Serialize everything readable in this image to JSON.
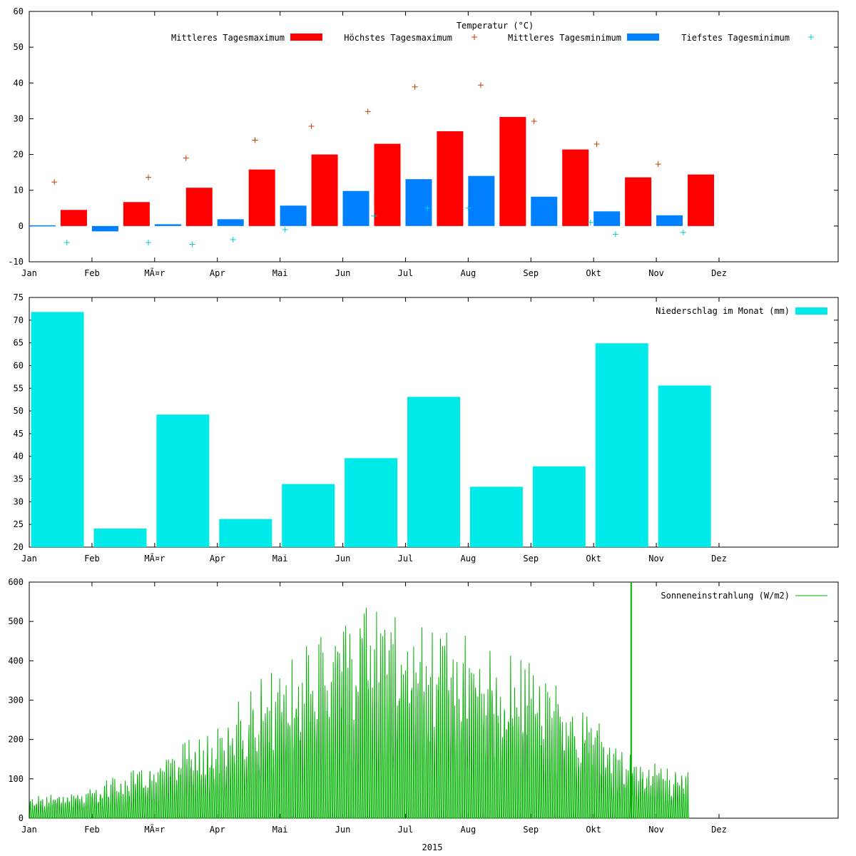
{
  "x_label": "2015",
  "months": [
    "Jan",
    "Feb",
    "MÃ¤r",
    "Apr",
    "Mai",
    "Jun",
    "Jul",
    "Aug",
    "Sep",
    "Okt",
    "Nov",
    "Dez"
  ],
  "colors": {
    "max_bar": "#ff0000",
    "max_point": "#c04000",
    "min_bar": "#0080ff",
    "min_point": "#00cccc",
    "precip": "#00eaea",
    "solar": "#00b000"
  },
  "chart_data": [
    {
      "type": "bar",
      "title": "Temperatur (°C)",
      "ylim": [
        -10,
        60
      ],
      "yticks": [
        -10,
        0,
        10,
        20,
        30,
        40,
        50,
        60
      ],
      "x_unit": "month_start",
      "xlim": [
        0,
        12.9
      ],
      "legend_position": "top-right",
      "series": [
        {
          "name": "Mittleres Tagesmaximum",
          "kind": "bar",
          "x": [
            0.5,
            1.5,
            2.5,
            3.5,
            4.5,
            5.5,
            6.5,
            7.5,
            8.5,
            9.5,
            10.5
          ],
          "values": [
            4.5,
            6.7,
            10.7,
            15.8,
            20.0,
            23.0,
            26.5,
            30.5,
            21.4,
            13.6,
            14.4
          ]
        },
        {
          "name": "Höchstes Tagesmaximum",
          "kind": "point",
          "x": [
            0.4,
            1.9,
            2.5,
            3.6,
            4.5,
            5.4,
            6.15,
            7.2,
            8.05,
            9.05,
            10.03
          ],
          "values": [
            12.3,
            13.6,
            19.0,
            24.0,
            27.9,
            32.0,
            38.9,
            39.4,
            29.3,
            22.9,
            17.3
          ]
        },
        {
          "name": "Mittleres Tagesminimum",
          "kind": "bar",
          "x": [
            0.0,
            1.0,
            2.0,
            3.0,
            4.0,
            5.0,
            6.0,
            7.0,
            8.0,
            9.0,
            10.0
          ],
          "values": [
            0.2,
            -1.5,
            0.5,
            1.9,
            5.7,
            9.8,
            13.1,
            14.0,
            8.2,
            4.1,
            3.0
          ]
        },
        {
          "name": "Tiefstes Tagesminimum",
          "kind": "point",
          "x": [
            0.6,
            1.9,
            2.6,
            3.25,
            4.08,
            5.5,
            6.35,
            7.0,
            8.95,
            9.35,
            10.43
          ],
          "values": [
            -4.6,
            -4.6,
            -5.1,
            -3.8,
            -1.0,
            2.8,
            5.0,
            5.0,
            1.0,
            -2.3,
            -1.8
          ]
        }
      ]
    },
    {
      "type": "bar",
      "ylim": [
        20,
        75
      ],
      "yticks": [
        20,
        25,
        30,
        35,
        40,
        45,
        50,
        55,
        60,
        65,
        70,
        75
      ],
      "x_unit": "month_start",
      "xlim": [
        0,
        12.9
      ],
      "legend_position": "top-right",
      "series": [
        {
          "name": "Niederschlag im Monat (mm)",
          "x": [
            0.45,
            1.45,
            2.45,
            3.45,
            4.45,
            5.45,
            6.45,
            7.45,
            8.45,
            9.45,
            10.45
          ],
          "values": [
            71.8,
            24.1,
            49.2,
            26.2,
            33.9,
            39.6,
            53.1,
            33.3,
            37.8,
            64.9,
            55.6
          ]
        }
      ]
    },
    {
      "type": "bar",
      "ylim": [
        0,
        600
      ],
      "yticks": [
        0,
        100,
        200,
        300,
        400,
        500,
        600
      ],
      "x_unit": "month_start",
      "xlim": [
        0,
        12.9
      ],
      "legend_position": "top-right",
      "series": [
        {
          "name": "Sonneneinstrahlung (W/m2)",
          "day_start": 0,
          "day_end": 320,
          "envelope_days": [
            0,
            30,
            59,
            90,
            105,
            120,
            140,
            151,
            165,
            181,
            195,
            212,
            243,
            273,
            285,
            300,
            320
          ],
          "envelope_values": [
            55,
            80,
            150,
            240,
            330,
            400,
            470,
            520,
            555,
            530,
            510,
            480,
            400,
            280,
            180,
            150,
            120
          ],
          "outliers": [
            {
              "day": 292,
              "value": 600
            }
          ]
        }
      ]
    }
  ]
}
